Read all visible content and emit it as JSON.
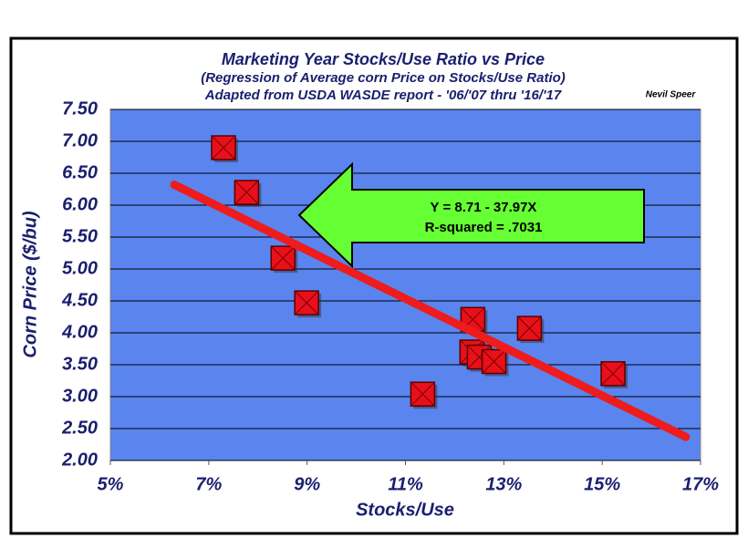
{
  "chart_data": {
    "type": "scatter",
    "title": "Marketing Year Stocks/Use Ratio vs Price",
    "subtitle": "(Regression of Average corn Price on Stocks/Use Ratio)",
    "source": "Adapted from USDA WASDE report - '06/'07 thru '16/'17",
    "author": "Nevil Speer",
    "x_label": "Stocks/Use",
    "y_label": "Corn Price ($/bu)",
    "x": [
      7.3,
      7.77,
      8.51,
      8.99,
      11.35,
      12.37,
      12.35,
      12.5,
      12.8,
      13.52,
      15.22
    ],
    "values": [
      6.9,
      6.2,
      5.17,
      4.47,
      3.04,
      4.21,
      3.7,
      3.62,
      3.55,
      4.07,
      3.36
    ],
    "color": "#e8101a",
    "trendline": {
      "x": [
        6.3,
        16.7
      ],
      "values": [
        6.32,
        2.37
      ],
      "color": "#ee1c1c"
    },
    "annotation": {
      "equation": "Y = 8.71 - 37.97X",
      "r_squared": "R-squared = .7031",
      "color": "#66ff33"
    },
    "xlim": [
      5,
      17
    ],
    "xticks": [
      {
        "value": 5,
        "label": "5%"
      },
      {
        "value": 7,
        "label": "7%"
      },
      {
        "value": 9,
        "label": "9%"
      },
      {
        "value": 11,
        "label": "11%"
      },
      {
        "value": 13,
        "label": "13%"
      },
      {
        "value": 15,
        "label": "15%"
      },
      {
        "value": 17,
        "label": "17%"
      }
    ],
    "ylim": [
      2,
      7.5
    ],
    "yticks": [
      {
        "value": 2,
        "label": "2.00"
      },
      {
        "value": 2.5,
        "label": "2.50"
      },
      {
        "value": 3,
        "label": "3.00"
      },
      {
        "value": 3.5,
        "label": "3.50"
      },
      {
        "value": 4,
        "label": "4.00"
      },
      {
        "value": 4.5,
        "label": "4.50"
      },
      {
        "value": 5,
        "label": "5.00"
      },
      {
        "value": 5.5,
        "label": "5.50"
      },
      {
        "value": 6,
        "label": "6.00"
      },
      {
        "value": 6.5,
        "label": "6.50"
      },
      {
        "value": 7,
        "label": "7.00"
      },
      {
        "value": 7.5,
        "label": "7.50"
      }
    ],
    "grid": true,
    "plot_background": "#5a85ee"
  }
}
